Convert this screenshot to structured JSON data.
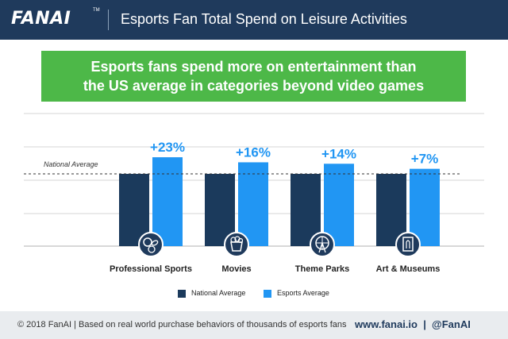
{
  "header": {
    "logo": "FANAI",
    "logo_tm": "TM",
    "title": "Esports Fan Total Spend on Leisure Activities"
  },
  "banner": {
    "line1": "Esports fans spend more on entertainment than",
    "line2": "the US average in categories beyond video games"
  },
  "chart_data": {
    "type": "bar",
    "categories": [
      "Professional Sports",
      "Movies",
      "Theme Parks",
      "Art & Museums"
    ],
    "series": [
      {
        "name": "National Average",
        "values": [
          100,
          100,
          100,
          100
        ],
        "color": "#1b3a5c"
      },
      {
        "name": "Esports Average",
        "values": [
          123,
          116,
          114,
          107
        ],
        "color": "#2196f3"
      }
    ],
    "data_labels": [
      "+23%",
      "+16%",
      "+14%",
      "+7%"
    ],
    "reference_line": {
      "label": "National Average",
      "value": 100,
      "style": "dashed"
    },
    "icons": [
      "sports-balls-icon",
      "popcorn-icon",
      "ferris-wheel-icon",
      "art-frame-icon"
    ],
    "ylim": [
      0,
      150
    ],
    "grid": true,
    "legend_position": "bottom-center"
  },
  "legend": {
    "national_label": "National Average",
    "esports_label": "Esports Average"
  },
  "footer": {
    "left": "© 2018 FanAI | Based on real world purchase behaviors of thousands of esports fans",
    "right": "www.fanai.io  |  @FanAI"
  },
  "colors": {
    "header_bg": "#1f3a5c",
    "banner_bg": "#4db848",
    "national": "#1b3a5c",
    "esports": "#2196f3",
    "label_blue": "#2196f3",
    "icon_bg": "#1f3a5c",
    "footer_bg": "#e9ecef"
  }
}
